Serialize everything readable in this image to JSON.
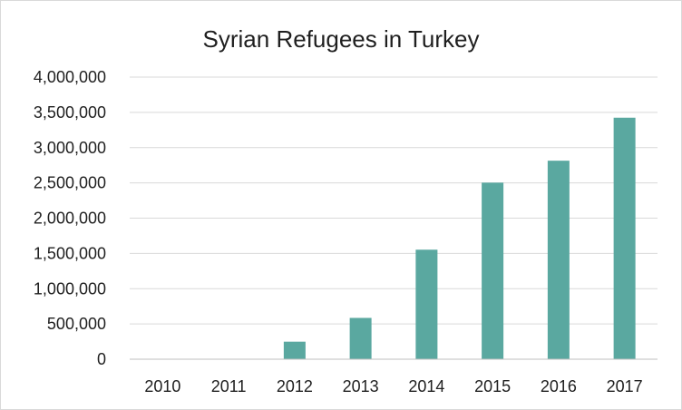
{
  "chart_data": {
    "type": "bar",
    "title": "Syrian Refugees in Turkey",
    "xlabel": "",
    "ylabel": "",
    "categories": [
      "2010",
      "2011",
      "2012",
      "2013",
      "2014",
      "2015",
      "2016",
      "2017"
    ],
    "values": [
      0,
      0,
      248466,
      585601,
      1552839,
      2503549,
      2814631,
      3424237
    ],
    "ylim": [
      0,
      4000000
    ],
    "yticks": [
      {
        "value": 0,
        "label": "0"
      },
      {
        "value": 500000,
        "label": "500,000"
      },
      {
        "value": 1000000,
        "label": "1,000,000"
      },
      {
        "value": 1500000,
        "label": "1,500,000"
      },
      {
        "value": 2000000,
        "label": "2,000,000"
      },
      {
        "value": 2500000,
        "label": "2,500,000"
      },
      {
        "value": 3000000,
        "label": "3,000,000"
      },
      {
        "value": 3500000,
        "label": "3,500,000"
      },
      {
        "value": 4000000,
        "label": "4,000,000"
      }
    ],
    "grid": true,
    "legend": "none",
    "colors": {
      "bar": "#5aa8a0",
      "grid": "#d9d9d9",
      "axis": "#bfbfbf"
    }
  }
}
